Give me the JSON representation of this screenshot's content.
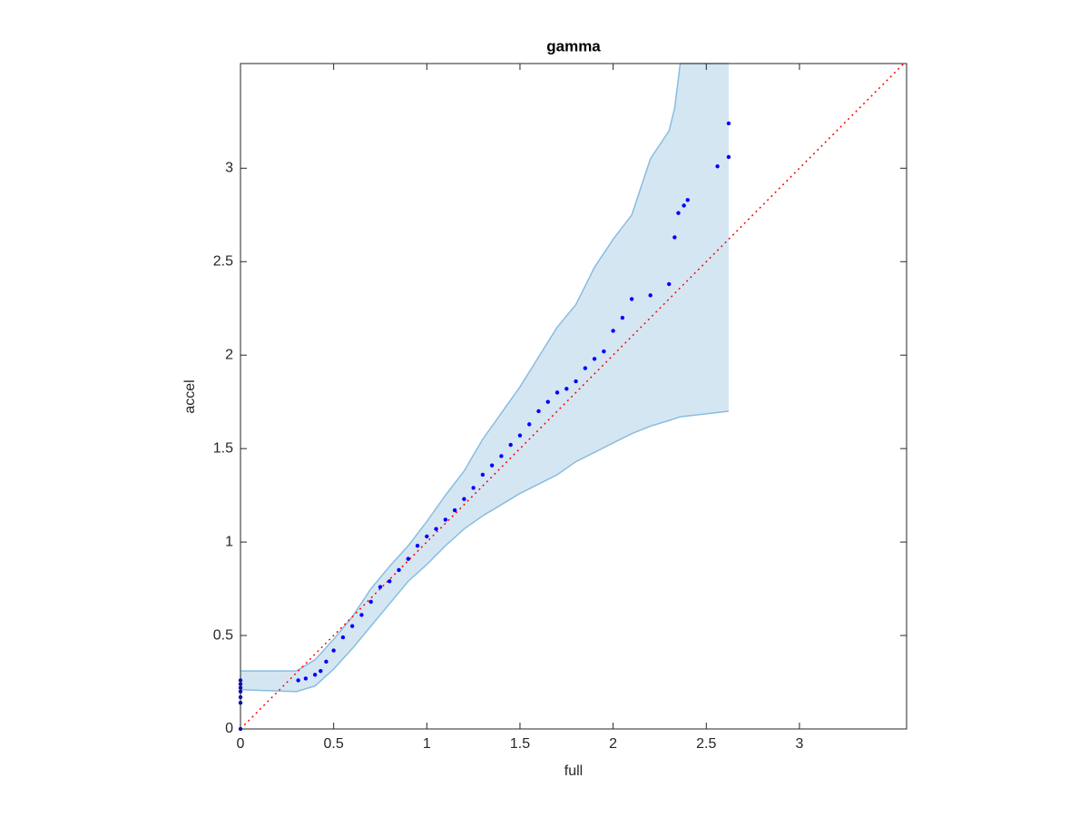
{
  "chart_data": {
    "type": "scatter",
    "title": "gamma",
    "x_label": "full",
    "y_label": "accel",
    "xlim": [
      0,
      3.575
    ],
    "ylim": [
      0,
      3.56
    ],
    "xticks": [
      0,
      0.5,
      1,
      1.5,
      2,
      2.5,
      3
    ],
    "yticks": [
      0,
      0.5,
      1,
      1.5,
      2,
      2.5,
      3
    ],
    "grid": false,
    "box": true,
    "color": "#0000ff",
    "x": [
      0,
      0,
      0,
      0,
      0,
      0,
      0,
      0.31,
      0.35,
      0.4,
      0.43,
      0.46,
      0.5,
      0.55,
      0.6,
      0.65,
      0.7,
      0.75,
      0.8,
      0.85,
      0.9,
      0.95,
      1.0,
      1.05,
      1.1,
      1.15,
      1.2,
      1.25,
      1.3,
      1.35,
      1.4,
      1.45,
      1.5,
      1.55,
      1.6,
      1.65,
      1.7,
      1.75,
      1.8,
      1.85,
      1.9,
      1.95,
      2.0,
      2.05,
      2.1,
      2.2,
      2.3,
      2.33,
      2.35,
      2.38,
      2.4,
      2.56,
      2.62,
      2.62
    ],
    "values": [
      0,
      0.14,
      0.17,
      0.2,
      0.22,
      0.24,
      0.26,
      0.26,
      0.27,
      0.29,
      0.31,
      0.36,
      0.42,
      0.49,
      0.55,
      0.61,
      0.68,
      0.76,
      0.79,
      0.85,
      0.91,
      0.98,
      1.03,
      1.07,
      1.12,
      1.17,
      1.23,
      1.29,
      1.36,
      1.41,
      1.46,
      1.52,
      1.57,
      1.63,
      1.7,
      1.75,
      1.8,
      1.82,
      1.86,
      1.93,
      1.98,
      2.02,
      2.13,
      2.2,
      2.3,
      2.32,
      2.38,
      2.63,
      2.76,
      2.8,
      2.83,
      3.01,
      3.06,
      3.24
    ],
    "band": {
      "fill": "#d5e6f3",
      "edge": "#88bde0",
      "x": [
        0,
        0.3,
        0.4,
        0.5,
        0.6,
        0.7,
        0.8,
        0.9,
        1.0,
        1.1,
        1.2,
        1.3,
        1.4,
        1.5,
        1.6,
        1.7,
        1.8,
        1.9,
        2.0,
        2.1,
        2.2,
        2.3,
        2.33,
        2.36,
        2.62
      ],
      "upper": [
        0.31,
        0.31,
        0.37,
        0.48,
        0.6,
        0.75,
        0.87,
        0.98,
        1.11,
        1.25,
        1.38,
        1.55,
        1.69,
        1.83,
        1.99,
        2.15,
        2.27,
        2.47,
        2.62,
        2.75,
        3.05,
        3.2,
        3.32,
        3.56,
        3.56
      ],
      "lower": [
        0.21,
        0.2,
        0.23,
        0.32,
        0.43,
        0.55,
        0.67,
        0.79,
        0.88,
        0.98,
        1.07,
        1.14,
        1.2,
        1.26,
        1.31,
        1.36,
        1.43,
        1.48,
        1.53,
        1.58,
        1.62,
        1.65,
        1.66,
        1.67,
        1.7
      ]
    },
    "identity_line": true,
    "identity_color": "#ff0000"
  }
}
